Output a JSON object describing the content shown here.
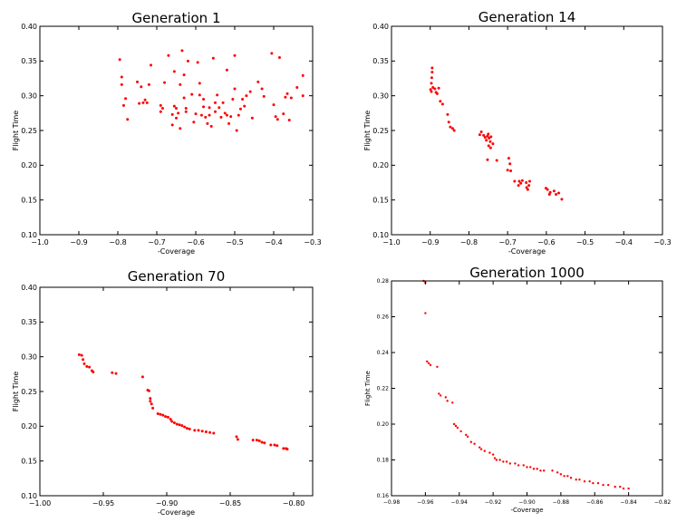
{
  "chart_data": [
    {
      "type": "scatter",
      "title": "Generation 1",
      "xlabel": "-Coverage",
      "ylabel": "Flight Time",
      "xlim": [
        -1.0,
        -0.3
      ],
      "ylim": [
        0.1,
        0.4
      ],
      "xticks": [
        "−1.0",
        "−0.9",
        "−0.8",
        "−0.7",
        "−0.6",
        "−0.5",
        "−0.4",
        "−0.3"
      ],
      "xtick_values": [
        -1.0,
        -0.9,
        -0.8,
        -0.7,
        -0.6,
        -0.5,
        -0.4,
        -0.3
      ],
      "yticks": [
        "0.10",
        "0.15",
        "0.20",
        "0.25",
        "0.30",
        "0.35",
        "0.40"
      ],
      "ytick_values": [
        0.1,
        0.15,
        0.2,
        0.25,
        0.3,
        0.35,
        0.4
      ],
      "grid": false,
      "color": "#ff0000",
      "points": [
        [
          -0.795,
          0.352
        ],
        [
          -0.79,
          0.327
        ],
        [
          -0.79,
          0.316
        ],
        [
          -0.785,
          0.286
        ],
        [
          -0.78,
          0.296
        ],
        [
          -0.775,
          0.266
        ],
        [
          -0.75,
          0.32
        ],
        [
          -0.745,
          0.289
        ],
        [
          -0.74,
          0.313
        ],
        [
          -0.735,
          0.29
        ],
        [
          -0.73,
          0.294
        ],
        [
          -0.725,
          0.29
        ],
        [
          -0.72,
          0.316
        ],
        [
          -0.715,
          0.344
        ],
        [
          -0.69,
          0.286
        ],
        [
          -0.69,
          0.277
        ],
        [
          -0.685,
          0.282
        ],
        [
          -0.68,
          0.319
        ],
        [
          -0.67,
          0.358
        ],
        [
          -0.66,
          0.273
        ],
        [
          -0.66,
          0.258
        ],
        [
          -0.655,
          0.285
        ],
        [
          -0.655,
          0.335
        ],
        [
          -0.65,
          0.282
        ],
        [
          -0.65,
          0.268
        ],
        [
          -0.645,
          0.275
        ],
        [
          -0.64,
          0.253
        ],
        [
          -0.64,
          0.316
        ],
        [
          -0.635,
          0.365
        ],
        [
          -0.63,
          0.33
        ],
        [
          -0.63,
          0.297
        ],
        [
          -0.625,
          0.277
        ],
        [
          -0.625,
          0.282
        ],
        [
          -0.62,
          0.35
        ],
        [
          -0.61,
          0.302
        ],
        [
          -0.605,
          0.262
        ],
        [
          -0.6,
          0.274
        ],
        [
          -0.595,
          0.348
        ],
        [
          -0.59,
          0.318
        ],
        [
          -0.59,
          0.301
        ],
        [
          -0.585,
          0.272
        ],
        [
          -0.58,
          0.284
        ],
        [
          -0.58,
          0.295
        ],
        [
          -0.575,
          0.269
        ],
        [
          -0.57,
          0.26
        ],
        [
          -0.565,
          0.283
        ],
        [
          -0.565,
          0.272
        ],
        [
          -0.56,
          0.256
        ],
        [
          -0.555,
          0.354
        ],
        [
          -0.55,
          0.29
        ],
        [
          -0.55,
          0.277
        ],
        [
          -0.545,
          0.301
        ],
        [
          -0.54,
          0.283
        ],
        [
          -0.535,
          0.269
        ],
        [
          -0.53,
          0.29
        ],
        [
          -0.525,
          0.275
        ],
        [
          -0.52,
          0.272
        ],
        [
          -0.52,
          0.337
        ],
        [
          -0.515,
          0.26
        ],
        [
          -0.51,
          0.27
        ],
        [
          -0.505,
          0.295
        ],
        [
          -0.5,
          0.31
        ],
        [
          -0.5,
          0.358
        ],
        [
          -0.495,
          0.25
        ],
        [
          -0.49,
          0.272
        ],
        [
          -0.485,
          0.281
        ],
        [
          -0.48,
          0.295
        ],
        [
          -0.475,
          0.285
        ],
        [
          -0.47,
          0.3
        ],
        [
          -0.46,
          0.306
        ],
        [
          -0.455,
          0.268
        ],
        [
          -0.44,
          0.32
        ],
        [
          -0.43,
          0.31
        ],
        [
          -0.425,
          0.299
        ],
        [
          -0.405,
          0.361
        ],
        [
          -0.4,
          0.287
        ],
        [
          -0.395,
          0.27
        ],
        [
          -0.39,
          0.266
        ],
        [
          -0.385,
          0.355
        ],
        [
          -0.375,
          0.274
        ],
        [
          -0.37,
          0.298
        ],
        [
          -0.365,
          0.303
        ],
        [
          -0.36,
          0.265
        ],
        [
          -0.355,
          0.297
        ],
        [
          -0.34,
          0.312
        ],
        [
          -0.325,
          0.329
        ],
        [
          -0.325,
          0.3
        ]
      ]
    },
    {
      "type": "scatter",
      "title": "Generation 14",
      "xlabel": "-Coverage",
      "ylabel": "Flight Time",
      "xlim": [
        -1.0,
        -0.3
      ],
      "ylim": [
        0.1,
        0.4
      ],
      "xticks": [
        "−1.0",
        "−0.9",
        "−0.8",
        "−0.7",
        "−0.6",
        "−0.5",
        "−0.4",
        "−0.3"
      ],
      "xtick_values": [
        -1.0,
        -0.9,
        -0.8,
        -0.7,
        -0.6,
        -0.5,
        -0.4,
        -0.3
      ],
      "yticks": [
        "0.10",
        "0.15",
        "0.20",
        "0.25",
        "0.30",
        "0.35",
        "0.40"
      ],
      "ytick_values": [
        0.1,
        0.15,
        0.2,
        0.25,
        0.3,
        0.35,
        0.4
      ],
      "grid": false,
      "color": "#ff0000",
      "points": [
        [
          -0.895,
          0.34
        ],
        [
          -0.895,
          0.334
        ],
        [
          -0.896,
          0.326
        ],
        [
          -0.897,
          0.318
        ],
        [
          -0.899,
          0.309
        ],
        [
          -0.897,
          0.306
        ],
        [
          -0.893,
          0.312
        ],
        [
          -0.888,
          0.31
        ],
        [
          -0.885,
          0.305
        ],
        [
          -0.882,
          0.303
        ],
        [
          -0.878,
          0.311
        ],
        [
          -0.874,
          0.292
        ],
        [
          -0.868,
          0.288
        ],
        [
          -0.855,
          0.273
        ],
        [
          -0.852,
          0.262
        ],
        [
          -0.848,
          0.255
        ],
        [
          -0.842,
          0.253
        ],
        [
          -0.838,
          0.25
        ],
        [
          -0.772,
          0.244
        ],
        [
          -0.768,
          0.248
        ],
        [
          -0.762,
          0.243
        ],
        [
          -0.758,
          0.24
        ],
        [
          -0.755,
          0.236
        ],
        [
          -0.752,
          0.242
        ],
        [
          -0.75,
          0.245
        ],
        [
          -0.748,
          0.239
        ],
        [
          -0.745,
          0.234
        ],
        [
          -0.749,
          0.228
        ],
        [
          -0.744,
          0.225
        ],
        [
          -0.752,
          0.208
        ],
        [
          -0.738,
          0.231
        ],
        [
          -0.743,
          0.241
        ],
        [
          -0.728,
          0.207
        ],
        [
          -0.697,
          0.21
        ],
        [
          -0.694,
          0.202
        ],
        [
          -0.7,
          0.193
        ],
        [
          -0.692,
          0.192
        ],
        [
          -0.682,
          0.177
        ],
        [
          -0.672,
          0.171
        ],
        [
          -0.67,
          0.177
        ],
        [
          -0.666,
          0.174
        ],
        [
          -0.662,
          0.178
        ],
        [
          -0.652,
          0.175
        ],
        [
          -0.651,
          0.168
        ],
        [
          -0.648,
          0.165
        ],
        [
          -0.645,
          0.171
        ],
        [
          -0.643,
          0.177
        ],
        [
          -0.601,
          0.167
        ],
        [
          -0.597,
          0.165
        ],
        [
          -0.592,
          0.158
        ],
        [
          -0.59,
          0.161
        ],
        [
          -0.58,
          0.163
        ],
        [
          -0.575,
          0.158
        ],
        [
          -0.568,
          0.16
        ],
        [
          -0.56,
          0.151
        ]
      ]
    },
    {
      "type": "scatter",
      "title": "Generation 70",
      "xlabel": "-Coverage",
      "ylabel": "Flight Time",
      "xlim": [
        -1.0,
        -0.785
      ],
      "ylim": [
        0.1,
        0.4
      ],
      "xticks": [
        "−1.00",
        "−0.95",
        "−0.90",
        "−0.85",
        "−0.80"
      ],
      "xtick_values": [
        -1.0,
        -0.95,
        -0.9,
        -0.85,
        -0.8
      ],
      "yticks": [
        "0.10",
        "0.15",
        "0.20",
        "0.25",
        "0.30",
        "0.35",
        "0.40"
      ],
      "ytick_values": [
        0.1,
        0.15,
        0.2,
        0.25,
        0.3,
        0.35,
        0.4
      ],
      "grid": false,
      "color": "#ff0000",
      "points": [
        [
          -0.969,
          0.303
        ],
        [
          -0.967,
          0.302
        ],
        [
          -0.966,
          0.296
        ],
        [
          -0.965,
          0.29
        ],
        [
          -0.963,
          0.286
        ],
        [
          -0.961,
          0.285
        ],
        [
          -0.959,
          0.28
        ],
        [
          -0.958,
          0.278
        ],
        [
          -0.943,
          0.277
        ],
        [
          -0.94,
          0.276
        ],
        [
          -0.919,
          0.271
        ],
        [
          -0.915,
          0.252
        ],
        [
          -0.914,
          0.251
        ],
        [
          -0.913,
          0.24
        ],
        [
          -0.913,
          0.236
        ],
        [
          -0.912,
          0.232
        ],
        [
          -0.911,
          0.226
        ],
        [
          -0.907,
          0.218
        ],
        [
          -0.905,
          0.217
        ],
        [
          -0.903,
          0.216
        ],
        [
          -0.901,
          0.214
        ],
        [
          -0.899,
          0.213
        ],
        [
          -0.897,
          0.21
        ],
        [
          -0.896,
          0.207
        ],
        [
          -0.894,
          0.205
        ],
        [
          -0.892,
          0.203
        ],
        [
          -0.89,
          0.202
        ],
        [
          -0.888,
          0.201
        ],
        [
          -0.886,
          0.199
        ],
        [
          -0.884,
          0.197
        ],
        [
          -0.882,
          0.196
        ],
        [
          -0.878,
          0.194
        ],
        [
          -0.875,
          0.194
        ],
        [
          -0.872,
          0.193
        ],
        [
          -0.869,
          0.192
        ],
        [
          -0.866,
          0.191
        ],
        [
          -0.863,
          0.19
        ],
        [
          -0.845,
          0.185
        ],
        [
          -0.844,
          0.181
        ],
        [
          -0.832,
          0.18
        ],
        [
          -0.829,
          0.18
        ],
        [
          -0.827,
          0.179
        ],
        [
          -0.825,
          0.177
        ],
        [
          -0.823,
          0.176
        ],
        [
          -0.818,
          0.173
        ],
        [
          -0.815,
          0.173
        ],
        [
          -0.813,
          0.172
        ],
        [
          -0.808,
          0.168
        ],
        [
          -0.806,
          0.168
        ],
        [
          -0.805,
          0.167
        ]
      ]
    },
    {
      "type": "scatter",
      "title": "Generation 1000",
      "xlabel": "-Coverage",
      "ylabel": "Flight Time",
      "xlim": [
        -0.98,
        -0.82
      ],
      "ylim": [
        0.16,
        0.28
      ],
      "xticks": [
        "−0.98",
        "−0.96",
        "−0.94",
        "−0.92",
        "−0.90",
        "−0.88",
        "−0.86",
        "−0.84",
        "−0.82"
      ],
      "xtick_values": [
        -0.98,
        -0.96,
        -0.94,
        -0.92,
        -0.9,
        -0.88,
        -0.86,
        -0.84,
        -0.82
      ],
      "yticks": [
        "0.16",
        "0.18",
        "0.20",
        "0.22",
        "0.24",
        "0.26",
        "0.28"
      ],
      "ytick_values": [
        0.16,
        0.18,
        0.2,
        0.22,
        0.24,
        0.26,
        0.28
      ],
      "grid": false,
      "color": "#ff0000",
      "points": [
        [
          -0.961,
          0.28
        ],
        [
          -0.96,
          0.279
        ],
        [
          -0.96,
          0.262
        ],
        [
          -0.959,
          0.235
        ],
        [
          -0.958,
          0.234
        ],
        [
          -0.957,
          0.233
        ],
        [
          -0.953,
          0.232
        ],
        [
          -0.952,
          0.217
        ],
        [
          -0.951,
          0.216
        ],
        [
          -0.948,
          0.215
        ],
        [
          -0.947,
          0.213
        ],
        [
          -0.944,
          0.212
        ],
        [
          -0.943,
          0.2
        ],
        [
          -0.942,
          0.199
        ],
        [
          -0.941,
          0.198
        ],
        [
          -0.939,
          0.196
        ],
        [
          -0.936,
          0.194
        ],
        [
          -0.935,
          0.193
        ],
        [
          -0.933,
          0.19
        ],
        [
          -0.931,
          0.189
        ],
        [
          -0.928,
          0.187
        ],
        [
          -0.927,
          0.186
        ],
        [
          -0.925,
          0.185
        ],
        [
          -0.922,
          0.184
        ],
        [
          -0.92,
          0.183
        ],
        [
          -0.919,
          0.181
        ],
        [
          -0.918,
          0.18
        ],
        [
          -0.916,
          0.18
        ],
        [
          -0.914,
          0.179
        ],
        [
          -0.912,
          0.179
        ],
        [
          -0.91,
          0.178
        ],
        [
          -0.907,
          0.178
        ],
        [
          -0.905,
          0.177
        ],
        [
          -0.902,
          0.177
        ],
        [
          -0.9,
          0.176
        ],
        [
          -0.898,
          0.176
        ],
        [
          -0.896,
          0.175
        ],
        [
          -0.894,
          0.175
        ],
        [
          -0.892,
          0.174
        ],
        [
          -0.89,
          0.174
        ],
        [
          -0.885,
          0.174
        ],
        [
          -0.882,
          0.173
        ],
        [
          -0.88,
          0.172
        ],
        [
          -0.878,
          0.171
        ],
        [
          -0.876,
          0.171
        ],
        [
          -0.874,
          0.17
        ],
        [
          -0.871,
          0.169
        ],
        [
          -0.869,
          0.169
        ],
        [
          -0.866,
          0.168
        ],
        [
          -0.863,
          0.168
        ],
        [
          -0.861,
          0.167
        ],
        [
          -0.858,
          0.167
        ],
        [
          -0.855,
          0.166
        ],
        [
          -0.852,
          0.166
        ],
        [
          -0.848,
          0.165
        ],
        [
          -0.845,
          0.165
        ],
        [
          -0.843,
          0.164
        ],
        [
          -0.84,
          0.164
        ]
      ]
    }
  ]
}
